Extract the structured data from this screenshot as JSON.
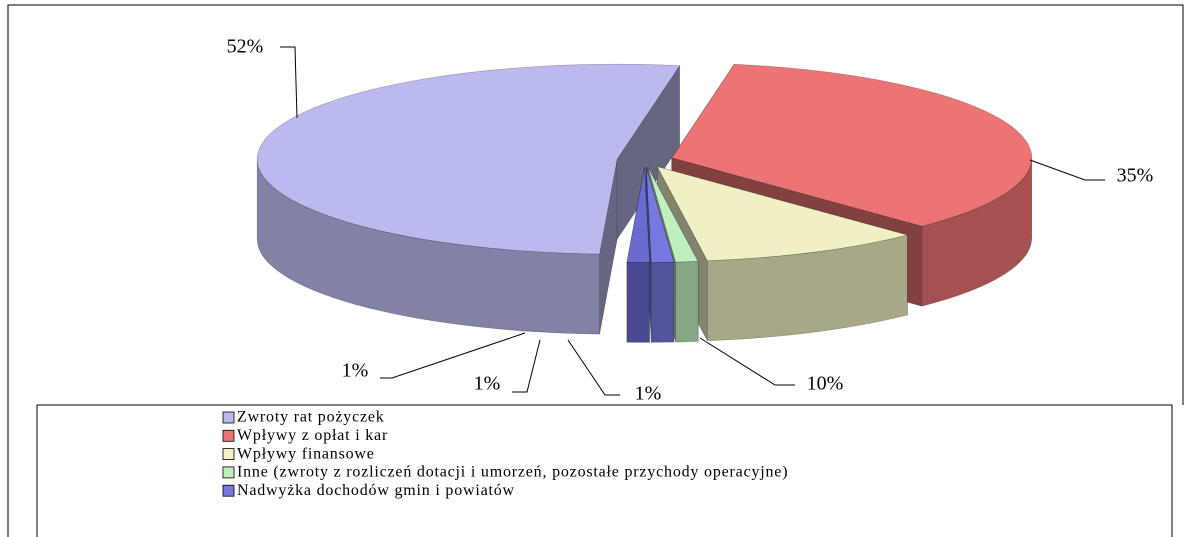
{
  "chart_data": {
    "type": "pie",
    "categories": [
      "Zwroty rat pożyczek",
      "Wpływy z opłat i kar",
      "Wpływy finansowe",
      "Inne (zwroty z rozliczeń dotacji  i umorzeń, pozostałe przychody operacyjne)",
      "Nadwyżka dochodów gmin i powiatów",
      null
    ],
    "values": [
      52,
      35,
      10,
      1,
      1,
      1
    ],
    "value_labels": [
      "52%",
      "35%",
      "10%",
      "1%",
      "1%",
      "1%"
    ],
    "colors": [
      "#babaee",
      "#ec7474",
      "#f0f0c4",
      "#bfeebf",
      "#7878e0",
      "#6a6ad0"
    ],
    "legend": "bottom"
  }
}
